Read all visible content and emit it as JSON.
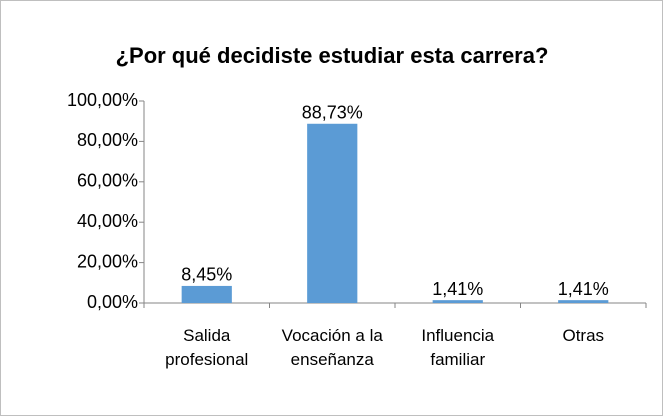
{
  "chart_data": {
    "type": "bar",
    "title": "¿Por qué decidiste estudiar esta carrera?",
    "categories": [
      "Salida profesional",
      "Vocación a la enseñanza",
      "Influencia familiar",
      "Otras"
    ],
    "values": [
      8.45,
      88.73,
      1.41,
      1.41
    ],
    "value_labels": [
      "8,45%",
      "88,73%",
      "1,41%",
      "1,41%"
    ],
    "color": "#5b9bd5",
    "ylim": [
      0,
      100
    ],
    "yticks": [
      {
        "value": 0,
        "label": "0,00%"
      },
      {
        "value": 20,
        "label": "20,00%"
      },
      {
        "value": 40,
        "label": "40,00%"
      },
      {
        "value": 60,
        "label": "60,00%"
      },
      {
        "value": 80,
        "label": "80,00%"
      },
      {
        "value": 100,
        "label": "100,00%"
      }
    ],
    "grid": false
  }
}
